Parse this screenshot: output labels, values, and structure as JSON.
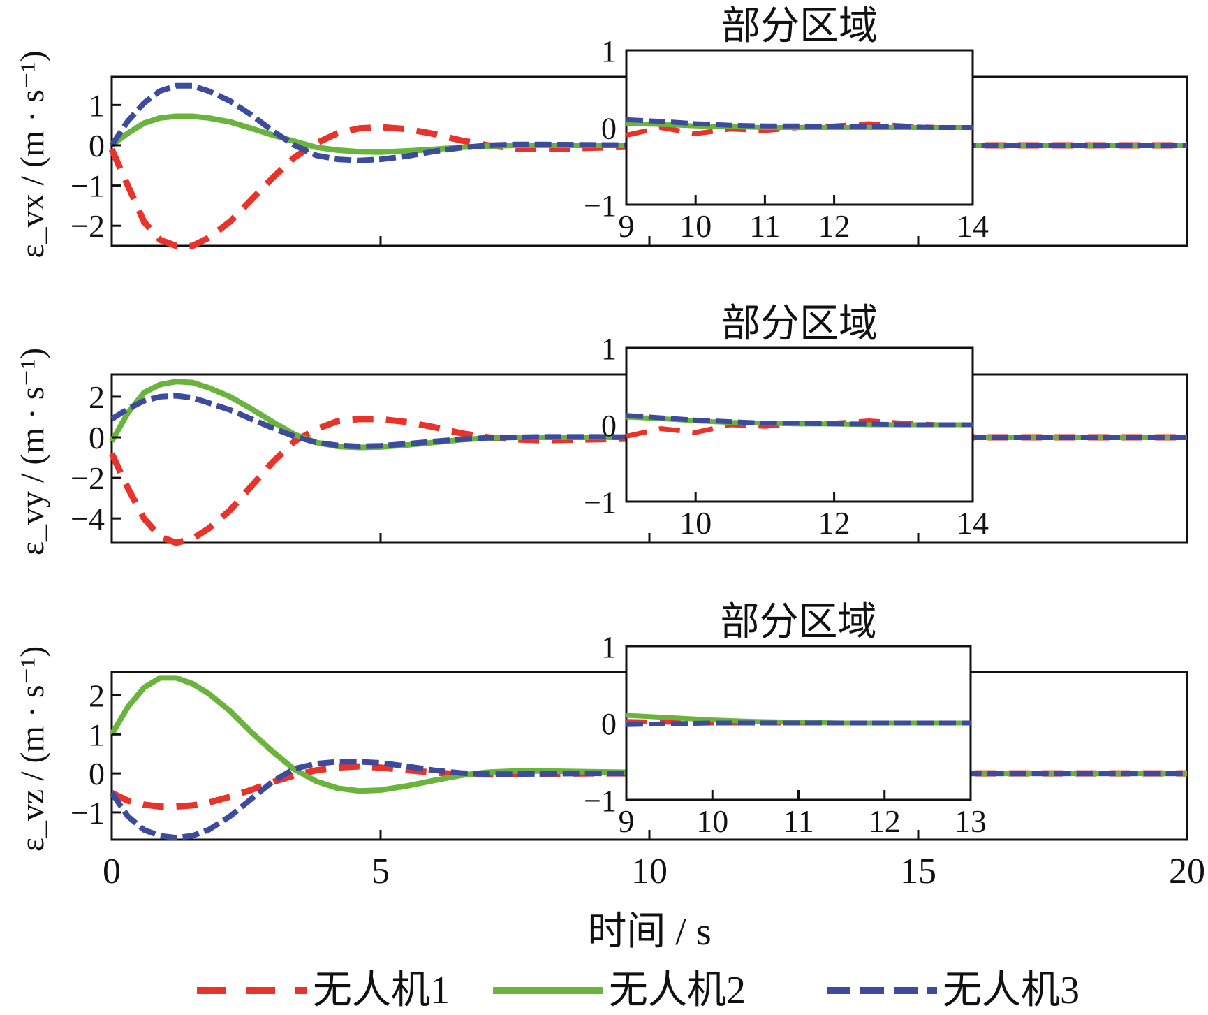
{
  "figure": {
    "xlabel": "时间 / s",
    "legend_placement": "bottom"
  },
  "chart_data": [
    {
      "type": "line",
      "panel": "vx",
      "ylabel": "ε_vx / (m · s⁻¹)",
      "xlim": [
        0,
        20
      ],
      "ylim": [
        -2.5,
        1.7
      ],
      "yticks": [
        -2,
        -1,
        0,
        1
      ],
      "ytick_labels": [
        "−2",
        "−1",
        "0",
        "1"
      ],
      "xticks": [
        0,
        5,
        10,
        15,
        20
      ],
      "grid": false,
      "series": [
        {
          "name": "无人机1",
          "color": "#e8332a",
          "style": "dash",
          "x": [
            0,
            0.3,
            0.6,
            0.9,
            1.2,
            1.5,
            1.8,
            2.2,
            2.6,
            3.0,
            3.4,
            3.8,
            4.2,
            4.6,
            5.0,
            5.5,
            6.0,
            6.5,
            7.0,
            7.5,
            8.0,
            9,
            10,
            12,
            15,
            20
          ],
          "y": [
            -0.1,
            -1.0,
            -1.9,
            -2.35,
            -2.5,
            -2.5,
            -2.3,
            -1.9,
            -1.35,
            -0.8,
            -0.3,
            0.05,
            0.3,
            0.42,
            0.45,
            0.4,
            0.28,
            0.12,
            0.0,
            -0.08,
            -0.1,
            -0.06,
            -0.02,
            0,
            0,
            0
          ]
        },
        {
          "name": "无人机2",
          "color": "#6ab43e",
          "style": "solid",
          "x": [
            0,
            0.3,
            0.6,
            0.9,
            1.2,
            1.5,
            1.8,
            2.2,
            2.6,
            3.0,
            3.4,
            3.8,
            4.2,
            4.6,
            5.0,
            5.5,
            6.0,
            6.5,
            7.0,
            7.5,
            8,
            9,
            10,
            12,
            15,
            20
          ],
          "y": [
            0.0,
            0.3,
            0.55,
            0.68,
            0.72,
            0.72,
            0.68,
            0.58,
            0.42,
            0.25,
            0.1,
            -0.05,
            -0.12,
            -0.16,
            -0.17,
            -0.14,
            -0.1,
            -0.05,
            -0.02,
            0,
            0,
            0,
            0,
            0,
            0,
            0
          ]
        },
        {
          "name": "无人机3",
          "color": "#3c4b9b",
          "style": "dashdot",
          "x": [
            0,
            0.3,
            0.6,
            0.9,
            1.2,
            1.5,
            1.8,
            2.2,
            2.6,
            3.0,
            3.4,
            3.8,
            4.2,
            4.6,
            5.0,
            5.5,
            6.0,
            6.5,
            7.0,
            7.5,
            8,
            9,
            10,
            12,
            15,
            20
          ],
          "y": [
            0.0,
            0.6,
            1.05,
            1.35,
            1.48,
            1.48,
            1.35,
            1.1,
            0.75,
            0.35,
            0.0,
            -0.25,
            -0.35,
            -0.38,
            -0.35,
            -0.27,
            -0.15,
            -0.06,
            0.0,
            0.02,
            0.02,
            0.01,
            0,
            0,
            0,
            0
          ]
        }
      ],
      "inset": {
        "title": "部分区域",
        "xlim": [
          9,
          14
        ],
        "ylim": [
          -1,
          1
        ],
        "xticks": [
          9,
          10,
          11,
          12,
          14
        ],
        "yticks": [
          -1,
          0,
          1
        ],
        "ytick_labels": [
          "−1",
          "0",
          "1"
        ],
        "series_x": [
          9,
          9.5,
          10,
          10.5,
          11,
          11.5,
          12,
          12.5,
          13,
          13.5,
          14
        ],
        "series_y": [
          [
            -0.1,
            0.0,
            -0.08,
            -0.02,
            -0.04,
            0.0,
            0.02,
            0.05,
            0.02,
            0.0,
            0.0
          ],
          [
            0.05,
            0.04,
            0.02,
            0.01,
            0,
            0,
            0,
            0,
            0,
            0,
            0
          ],
          [
            0.1,
            0.08,
            0.05,
            0.03,
            0.02,
            0.02,
            0.01,
            0.01,
            0.01,
            0.0,
            0.0
          ]
        ]
      }
    },
    {
      "type": "line",
      "panel": "vy",
      "ylabel": "ε_vy / (m · s⁻¹)",
      "xlim": [
        0,
        20
      ],
      "ylim": [
        -5.2,
        3.1
      ],
      "yticks": [
        -4,
        -2,
        0,
        2
      ],
      "ytick_labels": [
        "−4",
        "−2",
        "0",
        "2"
      ],
      "xticks": [
        0,
        5,
        10,
        15,
        20
      ],
      "grid": false,
      "series": [
        {
          "name": "无人机1",
          "color": "#e8332a",
          "style": "dash",
          "x": [
            0,
            0.3,
            0.6,
            0.9,
            1.2,
            1.5,
            1.8,
            2.2,
            2.6,
            3.0,
            3.4,
            3.8,
            4.2,
            4.6,
            5.0,
            5.5,
            6.0,
            6.5,
            7.0,
            7.5,
            8,
            9,
            10,
            12,
            15,
            20
          ],
          "y": [
            -0.8,
            -2.5,
            -4.0,
            -4.9,
            -5.2,
            -5.0,
            -4.5,
            -3.6,
            -2.4,
            -1.2,
            -0.2,
            0.4,
            0.8,
            0.9,
            0.9,
            0.75,
            0.5,
            0.2,
            0.0,
            -0.1,
            -0.15,
            -0.1,
            -0.05,
            0,
            0,
            0
          ]
        },
        {
          "name": "无人机2",
          "color": "#6ab43e",
          "style": "solid",
          "x": [
            0,
            0.3,
            0.6,
            0.9,
            1.2,
            1.5,
            1.8,
            2.2,
            2.6,
            3.0,
            3.4,
            3.8,
            4.2,
            4.6,
            5.0,
            5.5,
            6.0,
            6.5,
            7.0,
            7.5,
            8,
            9,
            10,
            12,
            15,
            20
          ],
          "y": [
            -0.2,
            1.2,
            2.2,
            2.6,
            2.75,
            2.7,
            2.45,
            2.0,
            1.4,
            0.75,
            0.15,
            -0.25,
            -0.45,
            -0.5,
            -0.48,
            -0.38,
            -0.25,
            -0.12,
            -0.03,
            0.0,
            0.0,
            0.0,
            0,
            0,
            0,
            0
          ]
        },
        {
          "name": "无人机3",
          "color": "#3c4b9b",
          "style": "dashdot",
          "x": [
            0,
            0.3,
            0.6,
            0.9,
            1.2,
            1.5,
            1.8,
            2.2,
            2.6,
            3.0,
            3.4,
            3.8,
            4.2,
            4.6,
            5.0,
            5.5,
            6.0,
            6.5,
            7.0,
            7.5,
            8,
            9,
            10,
            12,
            15,
            20
          ],
          "y": [
            0.9,
            1.4,
            1.8,
            2.0,
            2.05,
            1.95,
            1.7,
            1.35,
            0.9,
            0.45,
            0.05,
            -0.25,
            -0.4,
            -0.45,
            -0.42,
            -0.32,
            -0.2,
            -0.1,
            -0.02,
            0.0,
            0.02,
            0.02,
            0.0,
            0,
            0,
            0
          ]
        }
      ],
      "inset": {
        "title": "部分区域",
        "xlim": [
          9,
          14
        ],
        "ylim": [
          -1,
          1
        ],
        "xticks": [
          10,
          12,
          14
        ],
        "yticks": [
          -1,
          0,
          1
        ],
        "ytick_labels": [
          "−1",
          "0",
          "1"
        ],
        "series_x": [
          9,
          9.5,
          10,
          10.5,
          11,
          11.5,
          12,
          12.5,
          13,
          13.5,
          14
        ],
        "series_y": [
          [
            -0.15,
            -0.05,
            -0.1,
            0.0,
            -0.02,
            0.02,
            0.02,
            0.05,
            0.02,
            0.0,
            0.0
          ],
          [
            0.1,
            0.08,
            0.05,
            0.03,
            0.02,
            0.01,
            0.01,
            0.0,
            0.0,
            0.0,
            0.0
          ],
          [
            0.12,
            0.09,
            0.06,
            0.04,
            0.02,
            0.02,
            0.01,
            0.01,
            0.0,
            0.0,
            0.0
          ]
        ]
      }
    },
    {
      "type": "line",
      "panel": "vz",
      "ylabel": "ε_vz / (m · s⁻¹)",
      "xlim": [
        0,
        20
      ],
      "ylim": [
        -1.7,
        2.6
      ],
      "yticks": [
        -1,
        0,
        1,
        2
      ],
      "ytick_labels": [
        "−1",
        "0",
        "1",
        "2"
      ],
      "xticks": [
        0,
        5,
        10,
        15,
        20
      ],
      "xtick_labels": [
        "0",
        "5",
        "10",
        "15",
        "20"
      ],
      "grid": false,
      "series": [
        {
          "name": "无人机1",
          "color": "#e8332a",
          "style": "dash",
          "x": [
            0,
            0.3,
            0.6,
            0.9,
            1.2,
            1.5,
            1.8,
            2.2,
            2.6,
            3.0,
            3.4,
            3.8,
            4.2,
            4.6,
            5.0,
            5.5,
            6.0,
            6.5,
            7.0,
            7.5,
            8,
            9,
            10,
            12,
            15,
            20
          ],
          "y": [
            -0.5,
            -0.7,
            -0.8,
            -0.85,
            -0.85,
            -0.82,
            -0.75,
            -0.6,
            -0.42,
            -0.22,
            -0.05,
            0.08,
            0.15,
            0.18,
            0.15,
            0.08,
            0.02,
            -0.02,
            -0.03,
            -0.02,
            -0.01,
            0,
            0,
            0,
            0,
            0
          ]
        },
        {
          "name": "无人机2",
          "color": "#6ab43e",
          "style": "solid",
          "x": [
            0,
            0.3,
            0.6,
            0.9,
            1.2,
            1.5,
            1.8,
            2.2,
            2.6,
            3.0,
            3.4,
            3.8,
            4.2,
            4.6,
            5.0,
            5.5,
            6.0,
            6.5,
            7.0,
            7.5,
            8,
            9,
            10,
            12,
            15,
            20
          ],
          "y": [
            1.0,
            1.7,
            2.2,
            2.45,
            2.45,
            2.3,
            2.05,
            1.6,
            1.05,
            0.55,
            0.1,
            -0.2,
            -0.38,
            -0.45,
            -0.43,
            -0.32,
            -0.18,
            -0.05,
            0.03,
            0.06,
            0.06,
            0.04,
            0.02,
            0,
            0,
            0
          ]
        },
        {
          "name": "无人机3",
          "color": "#3c4b9b",
          "style": "dashdot",
          "x": [
            0,
            0.3,
            0.6,
            0.9,
            1.2,
            1.5,
            1.8,
            2.2,
            2.6,
            3.0,
            3.4,
            3.8,
            4.2,
            4.6,
            5.0,
            5.5,
            6.0,
            6.5,
            7.0,
            7.5,
            8,
            9,
            10,
            12,
            15,
            20
          ],
          "y": [
            -0.5,
            -1.1,
            -1.45,
            -1.6,
            -1.65,
            -1.6,
            -1.45,
            -1.1,
            -0.65,
            -0.2,
            0.12,
            0.25,
            0.3,
            0.3,
            0.27,
            0.18,
            0.08,
            0.01,
            -0.02,
            -0.02,
            -0.01,
            0,
            0,
            0,
            0,
            0
          ]
        }
      ],
      "inset": {
        "title": "部分区域",
        "xlim": [
          9,
          13
        ],
        "ylim": [
          -1,
          1
        ],
        "xticks": [
          9,
          10,
          11,
          12,
          13
        ],
        "yticks": [
          -1,
          0,
          1
        ],
        "ytick_labels": [
          "−1",
          "0",
          "1"
        ],
        "series_x": [
          9,
          9.5,
          10,
          10.5,
          11,
          11.5,
          12,
          12.5,
          13
        ],
        "series_y": [
          [
            0.02,
            0.01,
            0.0,
            0.0,
            0.0,
            0.0,
            0.0,
            0.0,
            0.0
          ],
          [
            0.1,
            0.07,
            0.04,
            0.02,
            0.01,
            0.0,
            0.0,
            0.0,
            0.0
          ],
          [
            -0.02,
            -0.01,
            0.0,
            0.0,
            0.0,
            0.0,
            0.0,
            0.0,
            0.0
          ]
        ]
      }
    }
  ]
}
